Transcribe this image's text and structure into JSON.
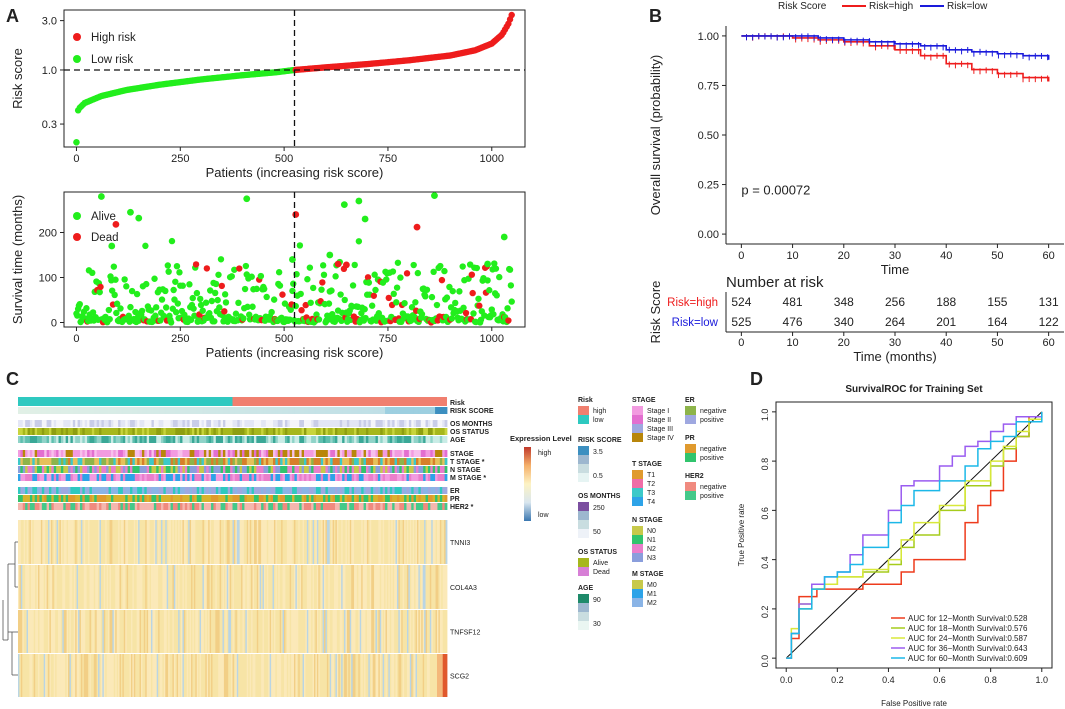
{
  "colors": {
    "high": "#ee1c1c",
    "low": "#22ee1c",
    "blue": "#1a1adb",
    "alive": "#22ee1c",
    "dead": "#ee1c1c",
    "risk_high": "#f07f6f",
    "risk_low": "#2ec9c0"
  },
  "chart_data": [
    {
      "panel": "A",
      "type": "scatter",
      "name": "risk-score-curve",
      "ylabel": "Risk score",
      "xlabel": "Patients (increasing risk score)",
      "x_ticks": [
        0,
        250,
        500,
        750,
        1000
      ],
      "y_ticks_log": [
        0.3,
        1.0,
        3.0
      ],
      "y_tick_labels": [
        "0.3",
        "1.0",
        "3.0"
      ],
      "xlim": [
        -30,
        1080
      ],
      "ylim_log": [
        0.18,
        3.8
      ],
      "legend": [
        "High risk",
        "Low risk"
      ],
      "cutoff_x": 525,
      "cutoff_y": 1.0,
      "n_low": 525,
      "n_high": 524,
      "curve_points": [
        [
          0,
          0.2
        ],
        [
          1,
          0.37
        ],
        [
          5,
          0.42
        ],
        [
          20,
          0.48
        ],
        [
          60,
          0.56
        ],
        [
          120,
          0.64
        ],
        [
          200,
          0.72
        ],
        [
          300,
          0.81
        ],
        [
          400,
          0.89
        ],
        [
          480,
          0.95
        ],
        [
          525,
          1.0
        ],
        [
          600,
          1.06
        ],
        [
          700,
          1.14
        ],
        [
          800,
          1.24
        ],
        [
          900,
          1.38
        ],
        [
          960,
          1.55
        ],
        [
          1000,
          1.8
        ],
        [
          1025,
          2.2
        ],
        [
          1040,
          2.8
        ],
        [
          1048,
          3.4
        ]
      ]
    },
    {
      "panel": "A",
      "type": "scatter",
      "name": "survival-time-scatter",
      "ylabel": "Survival time (months)",
      "xlabel": "Patients (increasing risk score)",
      "x_ticks": [
        0,
        250,
        500,
        750,
        1000
      ],
      "y_ticks": [
        0,
        100,
        200
      ],
      "xlim": [
        -30,
        1080
      ],
      "ylim": [
        -10,
        290
      ],
      "legend": [
        "Alive",
        "Dead"
      ],
      "cutoff_x": 525,
      "highlight_points": [
        {
          "x": 60,
          "y": 280,
          "status": "Alive"
        },
        {
          "x": 130,
          "y": 245,
          "status": "Alive"
        },
        {
          "x": 150,
          "y": 232,
          "status": "Alive"
        },
        {
          "x": 95,
          "y": 218,
          "status": "Dead"
        },
        {
          "x": 85,
          "y": 170,
          "status": "Alive"
        },
        {
          "x": 410,
          "y": 275,
          "status": "Alive"
        },
        {
          "x": 528,
          "y": 240,
          "status": "Dead"
        },
        {
          "x": 645,
          "y": 262,
          "status": "Alive"
        },
        {
          "x": 680,
          "y": 270,
          "status": "Alive"
        },
        {
          "x": 695,
          "y": 230,
          "status": "Alive"
        },
        {
          "x": 820,
          "y": 212,
          "status": "Dead"
        },
        {
          "x": 862,
          "y": 282,
          "status": "Alive"
        },
        {
          "x": 1030,
          "y": 190,
          "status": "Alive"
        },
        {
          "x": 520,
          "y": 140,
          "status": "Alive"
        },
        {
          "x": 610,
          "y": 150,
          "status": "Alive"
        },
        {
          "x": 630,
          "y": 130,
          "status": "Dead"
        },
        {
          "x": 650,
          "y": 128,
          "status": "Dead"
        },
        {
          "x": 990,
          "y": 130,
          "status": "Alive"
        }
      ]
    },
    {
      "panel": "B",
      "type": "line",
      "name": "km-curve",
      "title_legend": "Risk Score",
      "legend": [
        "Risk=high",
        "Risk=low"
      ],
      "ylabel": "Overall survival (probability)",
      "xlabel": "Time",
      "x_ticks": [
        0,
        10,
        20,
        30,
        40,
        50,
        60
      ],
      "y_ticks": [
        0.0,
        0.25,
        0.5,
        0.75,
        1.0
      ],
      "y_tick_labels": [
        "0.00",
        "0.25",
        "0.50",
        "0.75",
        "1.00"
      ],
      "xlim": [
        -3,
        63
      ],
      "ylim": [
        -0.05,
        1.05
      ],
      "pvalue": "p = 0.00072",
      "series": [
        {
          "name": "Risk=high",
          "x": [
            0,
            5,
            10,
            15,
            20,
            25,
            30,
            35,
            40,
            45,
            50,
            55,
            60
          ],
          "y": [
            1.0,
            1.0,
            0.99,
            0.98,
            0.97,
            0.95,
            0.93,
            0.9,
            0.86,
            0.83,
            0.81,
            0.79,
            0.77
          ]
        },
        {
          "name": "Risk=low",
          "x": [
            0,
            5,
            10,
            15,
            20,
            25,
            30,
            35,
            40,
            45,
            50,
            55,
            60
          ],
          "y": [
            1.0,
            1.0,
            1.0,
            0.99,
            0.98,
            0.97,
            0.96,
            0.95,
            0.93,
            0.92,
            0.91,
            0.9,
            0.88
          ]
        }
      ]
    },
    {
      "panel": "B",
      "type": "table",
      "name": "number-at-risk",
      "title": "Number at risk",
      "ylabel": "Risk Score",
      "xlabel": "Time (months)",
      "times": [
        0,
        10,
        20,
        30,
        40,
        50,
        60
      ],
      "rows": [
        {
          "label": "Risk=high",
          "values": [
            524,
            481,
            348,
            256,
            188,
            155,
            131
          ]
        },
        {
          "label": "Risk=low",
          "values": [
            525,
            476,
            340,
            264,
            201,
            164,
            122
          ]
        }
      ]
    },
    {
      "panel": "C",
      "type": "heatmap",
      "name": "expression-heatmap",
      "annotation_tracks": [
        "Risk",
        "RISK SCORE",
        "OS MONTHS",
        "OS STATUS",
        "AGE",
        "STAGE",
        "T STAGE *",
        "N STAGE",
        "M STAGE *",
        "ER",
        "PR",
        "HER2 *"
      ],
      "genes": [
        "TNNI3",
        "COL4A3",
        "TNFSF12",
        "SCG2"
      ],
      "expression_legend": {
        "title": "Expression Level",
        "high": "high",
        "low": "low"
      },
      "legends": [
        {
          "title": "Risk",
          "items": [
            "high",
            "low"
          ]
        },
        {
          "title": "RISK SCORE",
          "items": [
            "3.5",
            "0.5"
          ]
        },
        {
          "title": "OS MONTHS",
          "items": [
            "250",
            "50"
          ]
        },
        {
          "title": "OS STATUS",
          "items": [
            "Alive",
            "Dead"
          ]
        },
        {
          "title": "AGE",
          "items": [
            "90",
            "30"
          ]
        },
        {
          "title": "STAGE",
          "items": [
            "Stage I",
            "Stage II",
            "Stage III",
            "Stage IV"
          ]
        },
        {
          "title": "T STAGE",
          "items": [
            "T1",
            "T2",
            "T3",
            "T4"
          ]
        },
        {
          "title": "N STAGE",
          "items": [
            "N0",
            "N1",
            "N2",
            "N3"
          ]
        },
        {
          "title": "M STAGE",
          "items": [
            "M0",
            "M1",
            "M2"
          ]
        },
        {
          "title": "ER",
          "items": [
            "negative",
            "positive"
          ]
        },
        {
          "title": "PR",
          "items": [
            "negative",
            "positive"
          ]
        },
        {
          "title": "HER2",
          "items": [
            "negative",
            "positive"
          ]
        }
      ]
    },
    {
      "panel": "D",
      "type": "line",
      "name": "survival-roc",
      "title": "SurvivalROC for Training Set",
      "xlabel": "False Positive rate",
      "ylabel": "True Positive rate",
      "x_ticks": [
        0.0,
        0.2,
        0.4,
        0.6,
        0.8,
        1.0
      ],
      "y_ticks": [
        0.0,
        0.2,
        0.4,
        0.6,
        0.8,
        1.0
      ],
      "tick_labels": [
        "0.0",
        "0.2",
        "0.4",
        "0.6",
        "0.8",
        "1.0"
      ],
      "xlim": [
        -0.04,
        1.04
      ],
      "ylim": [
        -0.04,
        1.04
      ],
      "series": [
        {
          "name": "AUC for 12−Month Survival:0.528",
          "color": "#ee3b1c",
          "x": [
            0,
            0.02,
            0.05,
            0.08,
            0.12,
            0.2,
            0.3,
            0.4,
            0.45,
            0.5,
            0.6,
            0.7,
            0.75,
            0.8,
            0.85,
            0.9,
            0.95,
            1.0
          ],
          "y": [
            0,
            0.08,
            0.25,
            0.25,
            0.28,
            0.28,
            0.3,
            0.3,
            0.35,
            0.4,
            0.4,
            0.55,
            0.62,
            0.68,
            0.8,
            0.9,
            0.98,
            1.0
          ]
        },
        {
          "name": "AUC for 18−Month Survival:0.576",
          "color": "#a6cc1c",
          "x": [
            0,
            0.02,
            0.05,
            0.1,
            0.15,
            0.2,
            0.3,
            0.4,
            0.45,
            0.5,
            0.6,
            0.7,
            0.8,
            0.85,
            0.9,
            0.95,
            1.0
          ],
          "y": [
            0,
            0.1,
            0.2,
            0.28,
            0.3,
            0.33,
            0.35,
            0.38,
            0.45,
            0.5,
            0.6,
            0.7,
            0.78,
            0.85,
            0.9,
            0.97,
            1.0
          ]
        },
        {
          "name": "AUC for 24−Month Survival:0.587",
          "color": "#d8e83a",
          "x": [
            0,
            0.02,
            0.05,
            0.1,
            0.15,
            0.2,
            0.3,
            0.4,
            0.45,
            0.5,
            0.6,
            0.7,
            0.8,
            0.85,
            0.9,
            0.95,
            1.0
          ],
          "y": [
            0,
            0.12,
            0.22,
            0.28,
            0.3,
            0.33,
            0.36,
            0.4,
            0.48,
            0.55,
            0.62,
            0.72,
            0.8,
            0.86,
            0.92,
            0.97,
            1.0
          ]
        },
        {
          "name": "AUC for 36−Month Survival:0.643",
          "color": "#9a5cf0",
          "x": [
            0,
            0.02,
            0.05,
            0.1,
            0.15,
            0.2,
            0.25,
            0.3,
            0.4,
            0.45,
            0.5,
            0.6,
            0.65,
            0.7,
            0.75,
            0.8,
            0.85,
            0.9,
            1.0
          ],
          "y": [
            0,
            0.1,
            0.22,
            0.3,
            0.33,
            0.35,
            0.42,
            0.5,
            0.6,
            0.7,
            0.72,
            0.78,
            0.82,
            0.86,
            0.88,
            0.92,
            0.95,
            0.98,
            1.0
          ]
        },
        {
          "name": "AUC for 60−Month Survival:0.609",
          "color": "#1cb8e8",
          "x": [
            0,
            0.02,
            0.05,
            0.1,
            0.15,
            0.2,
            0.25,
            0.3,
            0.4,
            0.45,
            0.5,
            0.6,
            0.7,
            0.75,
            0.8,
            0.85,
            0.9,
            1.0
          ],
          "y": [
            0,
            0.1,
            0.2,
            0.28,
            0.33,
            0.35,
            0.38,
            0.45,
            0.55,
            0.62,
            0.68,
            0.72,
            0.78,
            0.85,
            0.88,
            0.9,
            0.96,
            1.0
          ]
        }
      ]
    }
  ],
  "panel_labels": [
    "A",
    "B",
    "C",
    "D"
  ]
}
